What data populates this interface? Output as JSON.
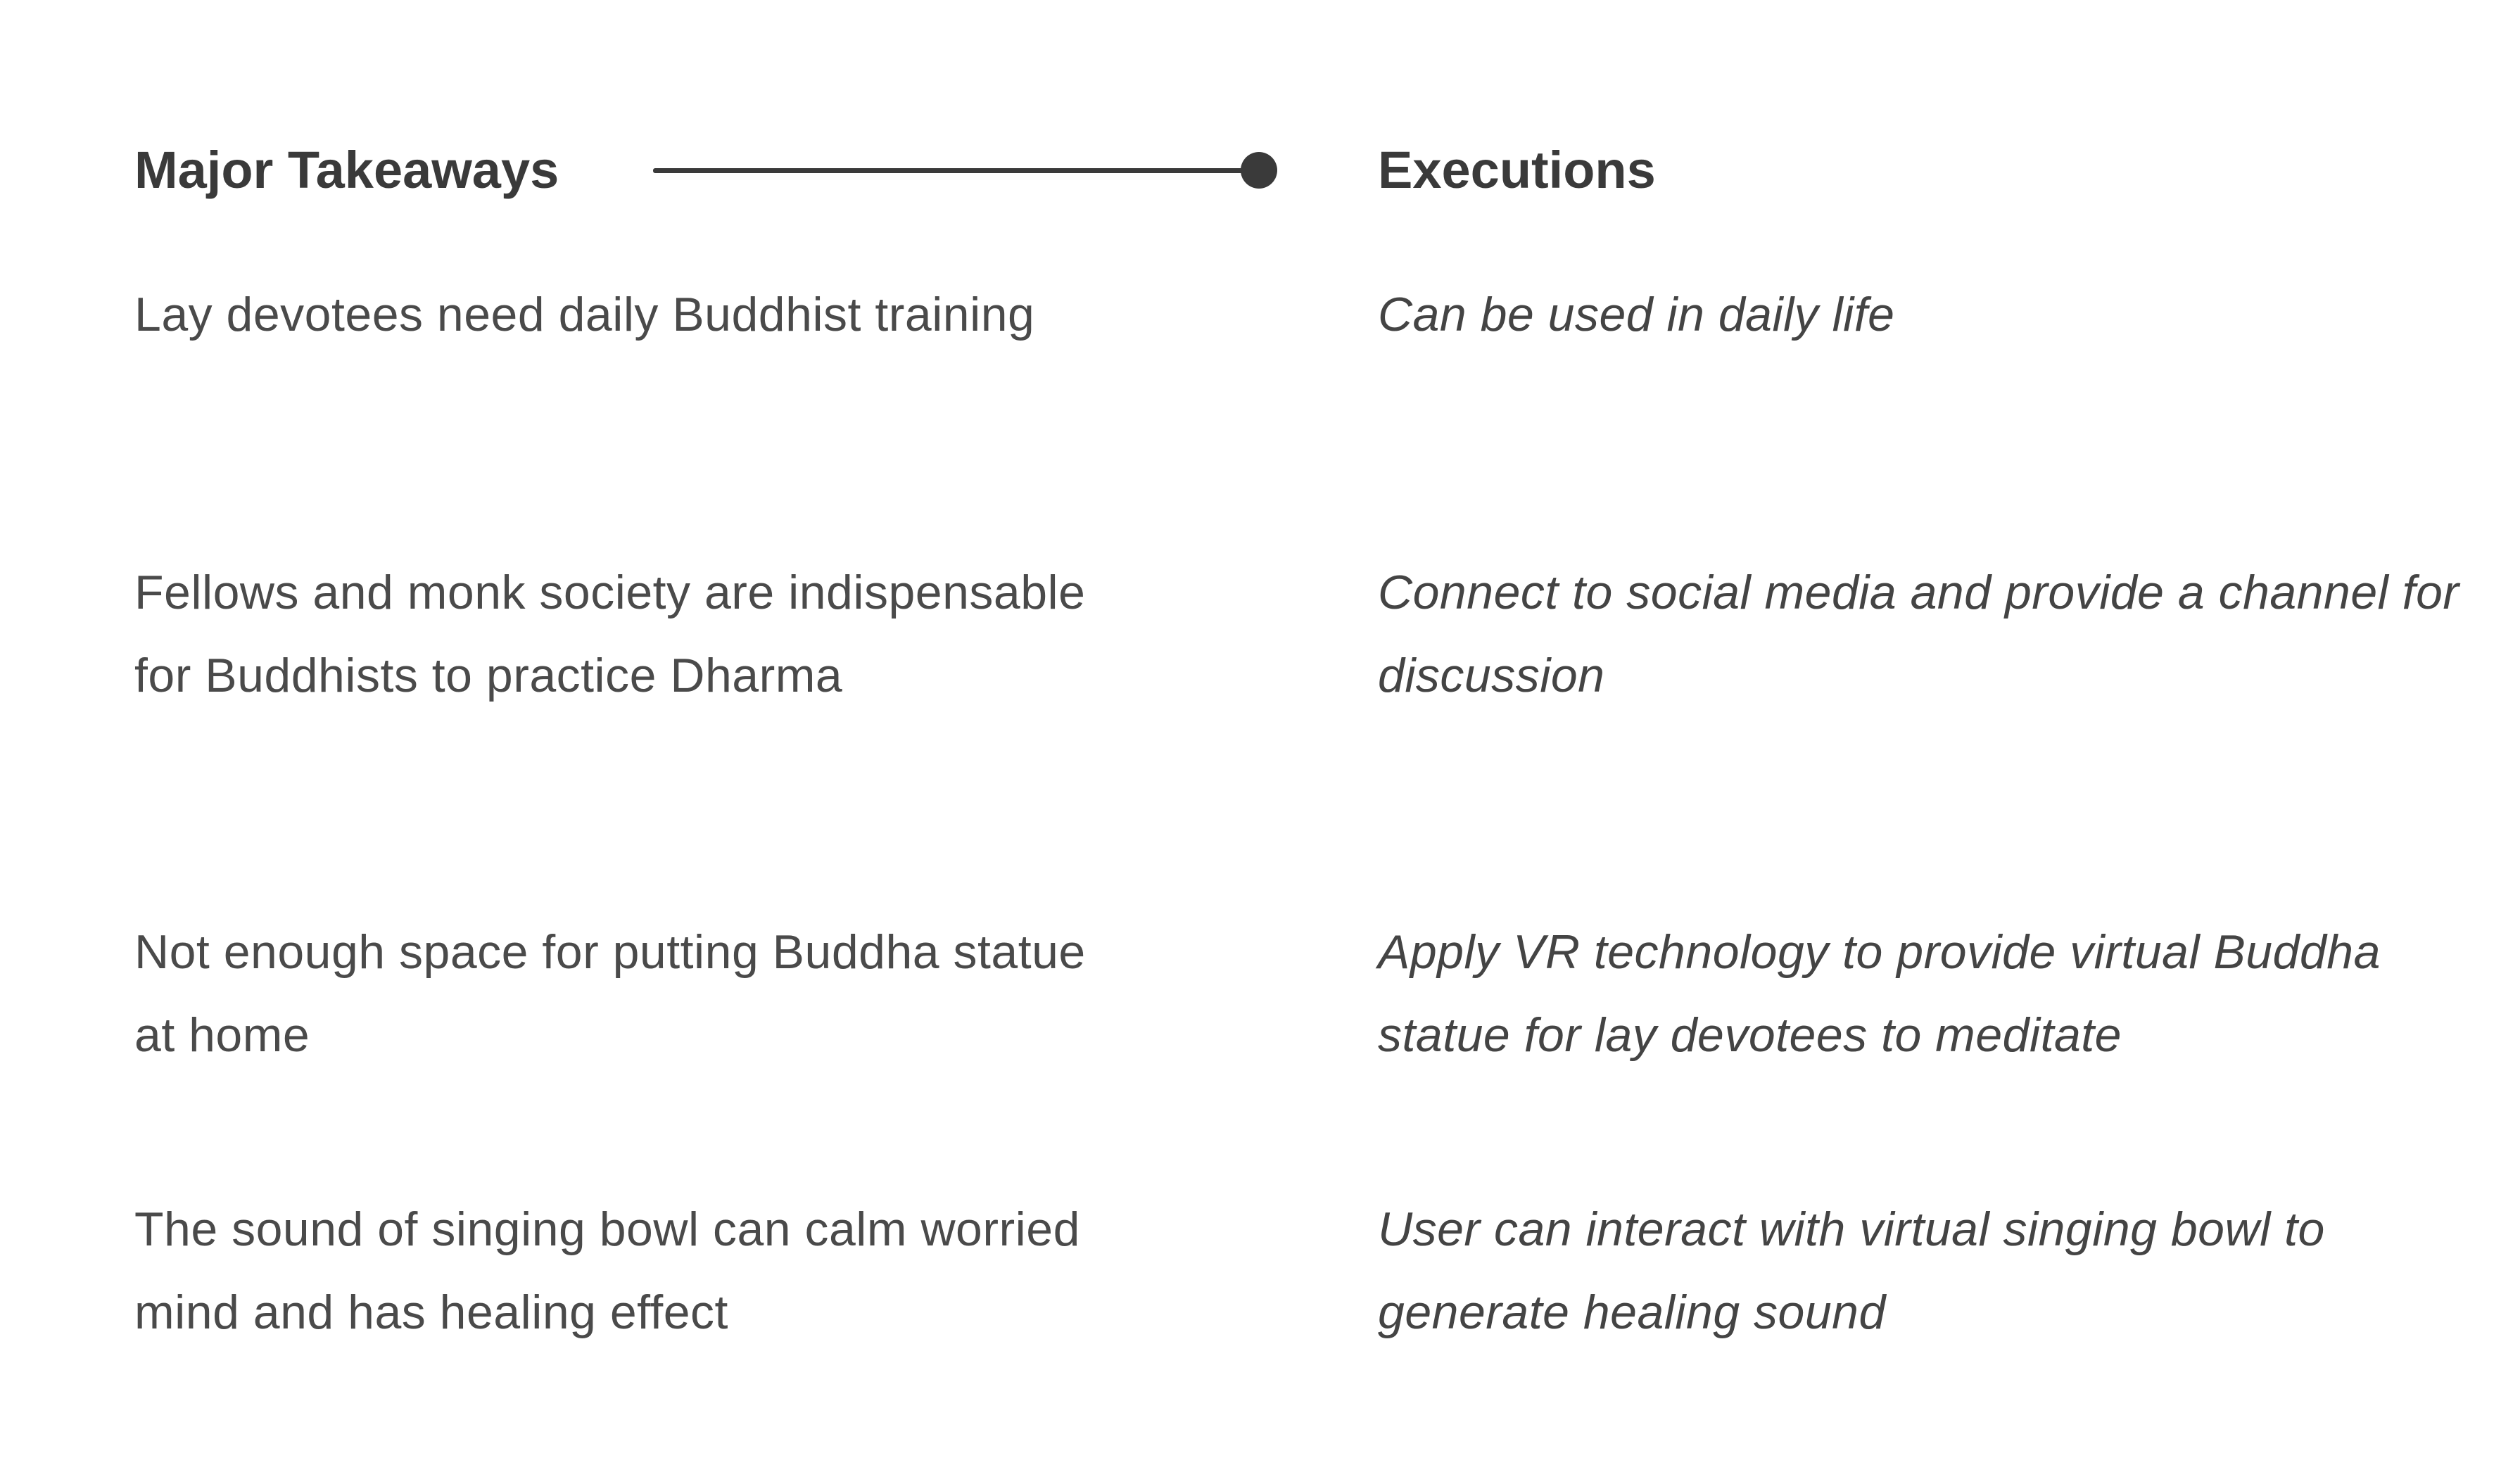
{
  "headings": {
    "left": "Major Takeaways",
    "right": "Executions"
  },
  "colors": {
    "text": "#404040",
    "accent": "#3a3a3a",
    "background": "#ffffff"
  },
  "rows": [
    {
      "takeaway": "Lay devotees need daily Buddhist training",
      "execution": "Can be used in daily life"
    },
    {
      "takeaway": "Fellows and monk society are indispensable for Buddhists to practice Dharma",
      "execution": "Connect to social media and provide a channel for discussion"
    },
    {
      "takeaway": "Not enough space for putting Buddha statue at home",
      "execution": "Apply VR technology to provide virtual Buddha statue for lay devotees to meditate"
    },
    {
      "takeaway": "The sound of singing bowl can calm worried mind and has healing effect",
      "execution": "User can interact with virtual singing bowl to generate healing sound"
    }
  ]
}
